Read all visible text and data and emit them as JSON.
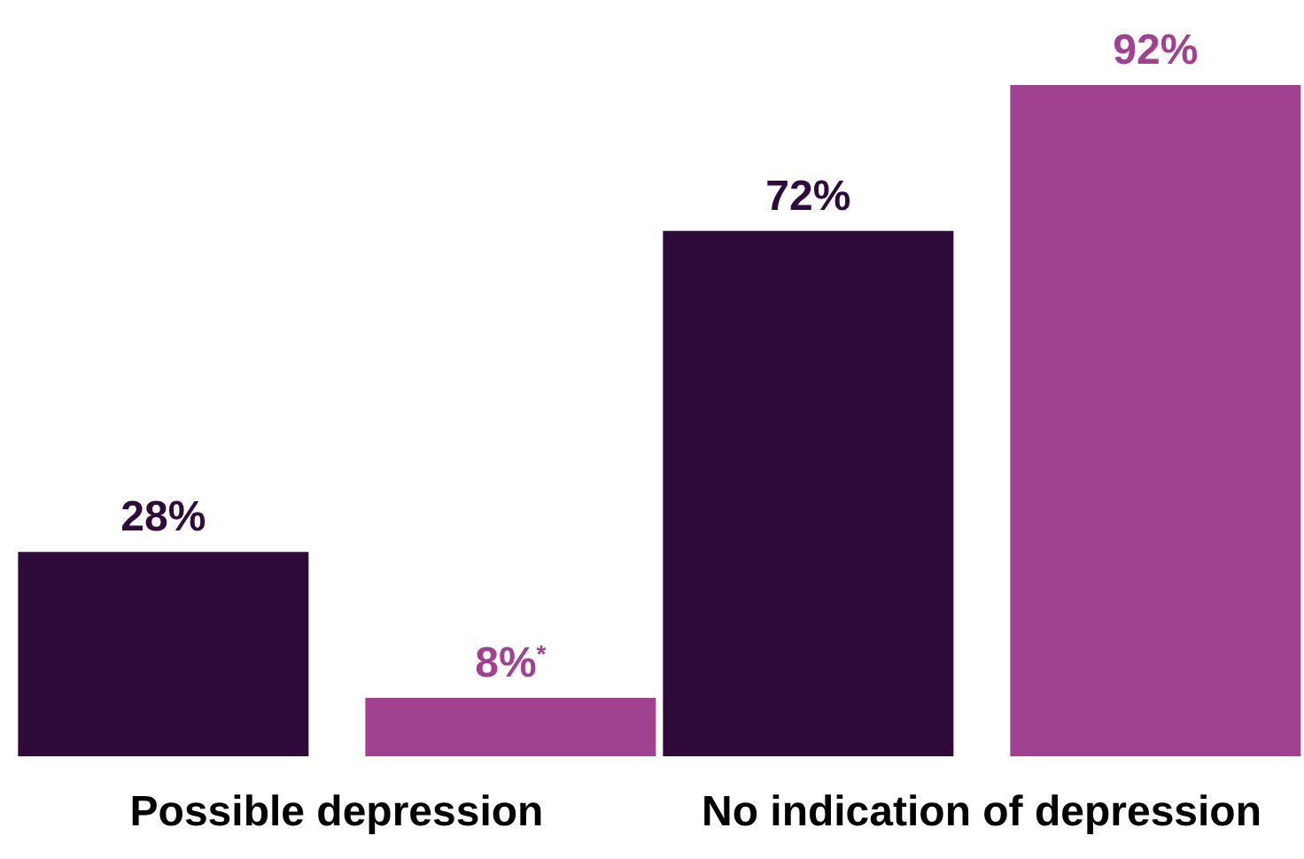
{
  "chart_data": {
    "type": "bar",
    "categories": [
      "Possible depression",
      "No indication of depression"
    ],
    "series": [
      {
        "color": "#2e0b3a",
        "values": [
          28,
          72
        ],
        "value_labels": [
          "28%",
          "72%"
        ]
      },
      {
        "color": "#a04290",
        "values": [
          8,
          92
        ],
        "value_labels": [
          "8%$^{*}$",
          "92%"
        ]
      }
    ],
    "tick_labels": "x",
    "grid": false,
    "legend": false
  }
}
